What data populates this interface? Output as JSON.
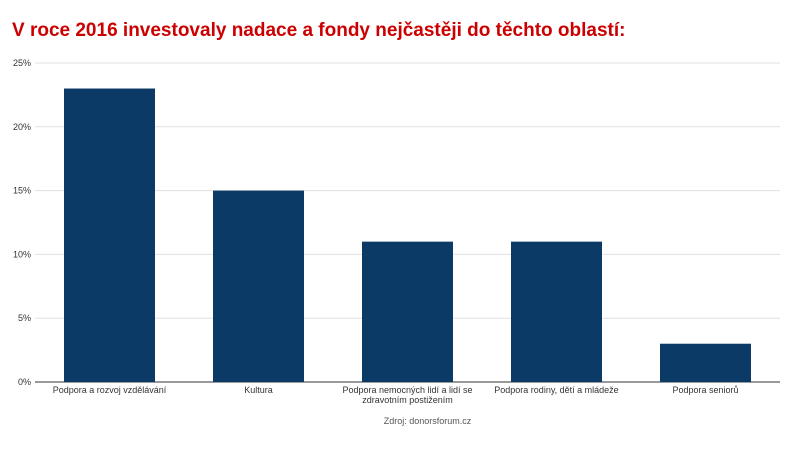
{
  "chart_data": {
    "type": "bar",
    "title": "V roce 2016 investovaly nadace a fondy nejčastěji do těchto oblastí:",
    "categories": [
      [
        "Podpora a rozvoj vzdělávání"
      ],
      [
        "Kultura"
      ],
      [
        "Podpora nemocných lidí a lidí se",
        "zdravotním postižením"
      ],
      [
        "Podpora rodiny, dětí a mládeže"
      ],
      [
        "Podpora seniorů"
      ]
    ],
    "values": [
      23,
      15,
      11,
      11,
      3
    ],
    "y_ticks": [
      "0%",
      "5%",
      "10%",
      "15%",
      "20%",
      "25%"
    ],
    "ylim": [
      0,
      25
    ],
    "unit": "%",
    "grid": true,
    "bar_color": "#0b3a66",
    "title_color": "#cc0000",
    "source": "Zdroj: donorsforum.cz"
  }
}
